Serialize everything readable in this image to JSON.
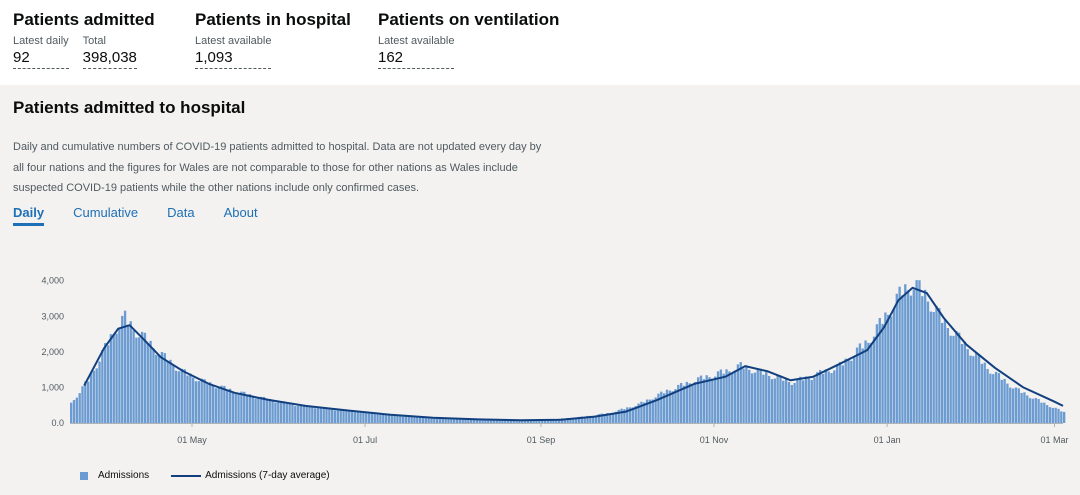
{
  "headline": [
    {
      "title": "Patients admitted",
      "cells": [
        {
          "label": "Latest daily",
          "value": "92"
        },
        {
          "label": "Total",
          "value": "398,038"
        }
      ]
    },
    {
      "title": "Patients in hospital",
      "cells": [
        {
          "label": "Latest available",
          "value": "1,093"
        }
      ]
    },
    {
      "title": "Patients on ventilation",
      "cells": [
        {
          "label": "Latest available",
          "value": "162"
        }
      ]
    }
  ],
  "section": {
    "title": "Patients admitted to hospital",
    "description": "Daily and cumulative numbers of COVID-19 patients admitted to hospital. Data are not updated every day by all four nations and the figures for Wales are not comparable to those for other nations as Wales include suspected COVID-19 patients while the other nations include only confirmed cases.",
    "tabs": [
      "Daily",
      "Cumulative",
      "Data",
      "About"
    ],
    "active_tab": "Daily"
  },
  "colors": {
    "bar": "#6b9bd1",
    "line": "#12407f",
    "tab_active": "#1d70b8"
  },
  "chart_data": {
    "type": "bar",
    "x_start": "2020-03-19",
    "x_end": "2021-03-04",
    "x_tick_labels": [
      "01 May",
      "01 Jul",
      "01 Sep",
      "01 Nov",
      "01 Jan",
      "01 Mar"
    ],
    "y_ticks": [
      0,
      1000,
      2000,
      3000,
      4000
    ],
    "y_tick_labels": [
      "0.0",
      "1,000",
      "2,000",
      "3,000",
      "4,000"
    ],
    "ylim": [
      0,
      4300
    ],
    "grid": false,
    "legend_position": "bottom-left",
    "series": [
      {
        "name": "Admissions",
        "type": "bar",
        "anchors": [
          [
            "2020-03-19",
            550
          ],
          [
            "2020-03-25",
            1200
          ],
          [
            "2020-03-31",
            2100
          ],
          [
            "2020-04-04",
            2700
          ],
          [
            "2020-04-07",
            2950
          ],
          [
            "2020-04-10",
            2650
          ],
          [
            "2020-04-15",
            2300
          ],
          [
            "2020-04-20",
            1900
          ],
          [
            "2020-04-27",
            1450
          ],
          [
            "2020-05-05",
            1150
          ],
          [
            "2020-05-15",
            900
          ],
          [
            "2020-05-25",
            700
          ],
          [
            "2020-06-05",
            520
          ],
          [
            "2020-06-20",
            380
          ],
          [
            "2020-07-05",
            270
          ],
          [
            "2020-07-20",
            160
          ],
          [
            "2020-08-05",
            110
          ],
          [
            "2020-08-20",
            80
          ],
          [
            "2020-09-05",
            100
          ],
          [
            "2020-09-15",
            170
          ],
          [
            "2020-09-25",
            280
          ],
          [
            "2020-10-05",
            520
          ],
          [
            "2020-10-15",
            900
          ],
          [
            "2020-10-25",
            1200
          ],
          [
            "2020-11-05",
            1450
          ],
          [
            "2020-11-10",
            1600
          ],
          [
            "2020-11-20",
            1350
          ],
          [
            "2020-11-28",
            1150
          ],
          [
            "2020-12-05",
            1300
          ],
          [
            "2020-12-15",
            1600
          ],
          [
            "2020-12-25",
            2300
          ],
          [
            "2021-01-01",
            3100
          ],
          [
            "2021-01-06",
            3700
          ],
          [
            "2021-01-10",
            3900
          ],
          [
            "2021-01-14",
            3600
          ],
          [
            "2021-01-20",
            2900
          ],
          [
            "2021-01-28",
            2200
          ],
          [
            "2021-02-05",
            1550
          ],
          [
            "2021-02-15",
            950
          ],
          [
            "2021-02-25",
            550
          ],
          [
            "2021-03-04",
            300
          ]
        ]
      },
      {
        "name": "Admissions (7-day average)",
        "type": "line",
        "anchors": [
          [
            "2020-03-24",
            1050
          ],
          [
            "2020-03-31",
            2100
          ],
          [
            "2020-04-05",
            2650
          ],
          [
            "2020-04-09",
            2750
          ],
          [
            "2020-04-14",
            2350
          ],
          [
            "2020-04-20",
            1850
          ],
          [
            "2020-04-28",
            1450
          ],
          [
            "2020-05-07",
            1100
          ],
          [
            "2020-05-16",
            850
          ],
          [
            "2020-05-28",
            650
          ],
          [
            "2020-06-10",
            480
          ],
          [
            "2020-06-25",
            350
          ],
          [
            "2020-07-10",
            230
          ],
          [
            "2020-07-25",
            150
          ],
          [
            "2020-08-10",
            100
          ],
          [
            "2020-08-25",
            80
          ],
          [
            "2020-09-08",
            90
          ],
          [
            "2020-09-20",
            180
          ],
          [
            "2020-10-01",
            320
          ],
          [
            "2020-10-12",
            650
          ],
          [
            "2020-10-25",
            1100
          ],
          [
            "2020-11-05",
            1300
          ],
          [
            "2020-11-12",
            1600
          ],
          [
            "2020-11-20",
            1450
          ],
          [
            "2020-11-28",
            1200
          ],
          [
            "2020-12-06",
            1300
          ],
          [
            "2020-12-15",
            1650
          ],
          [
            "2020-12-25",
            2050
          ],
          [
            "2020-12-31",
            2700
          ],
          [
            "2021-01-05",
            3450
          ],
          [
            "2021-01-10",
            3800
          ],
          [
            "2021-01-15",
            3650
          ],
          [
            "2021-01-21",
            2950
          ],
          [
            "2021-01-29",
            2200
          ],
          [
            "2021-02-08",
            1550
          ],
          [
            "2021-02-18",
            1000
          ],
          [
            "2021-03-01",
            600
          ],
          [
            "2021-03-04",
            480
          ]
        ]
      }
    ]
  }
}
